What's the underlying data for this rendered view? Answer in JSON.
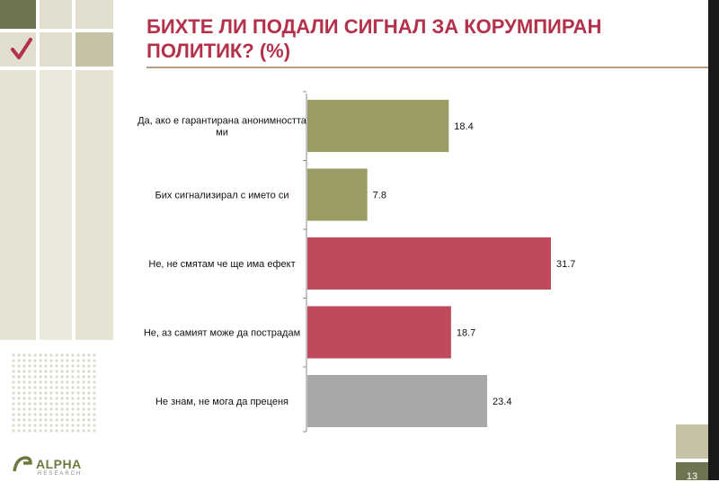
{
  "slide": {
    "title_line1": "БИХТЕ ЛИ ПОДАЛИ СИГНАЛ ЗА КОРУМПИРАН",
    "title_line2": "ПОЛИТИК? (%)",
    "logo_text": "ALPHA",
    "logo_subtext": "RESEARCH",
    "page_number": "13"
  },
  "colors": {
    "title": "#b3314a",
    "olive": "#9a9c63",
    "red": "#c04a5b",
    "gray": "#a8a8a8",
    "tile_dark": "#6e7350",
    "tile_tan": "#c6c2a6",
    "tile_light": "#e1dece"
  },
  "chart_data": {
    "type": "bar",
    "orientation": "horizontal",
    "categories": [
      "Да, ако е гарантирана анонимността ми",
      "Бих сигнализирал с името си",
      "Не, не смятам че ще има ефект",
      "Не, аз самият може да пострадам",
      "Не знам, не мога да преценя"
    ],
    "category_label_lines": [
      [
        "Да, ако е гарантирана анонимността",
        "ми"
      ],
      [
        "Бих сигнализирал с името си"
      ],
      [
        "Не, не смятам че ще има ефект"
      ],
      [
        "Не, аз самият може да пострадам"
      ],
      [
        "Не знам, не мога да преценя"
      ]
    ],
    "values": [
      18.4,
      7.8,
      31.7,
      18.7,
      23.4
    ],
    "value_labels": [
      "18.4",
      "7.8",
      "31.7",
      "18.7",
      "23.4"
    ],
    "bar_colors": [
      "olive",
      "olive",
      "red",
      "red",
      "gray"
    ],
    "xlim": [
      0,
      35
    ],
    "grid": false,
    "legend": "none"
  }
}
